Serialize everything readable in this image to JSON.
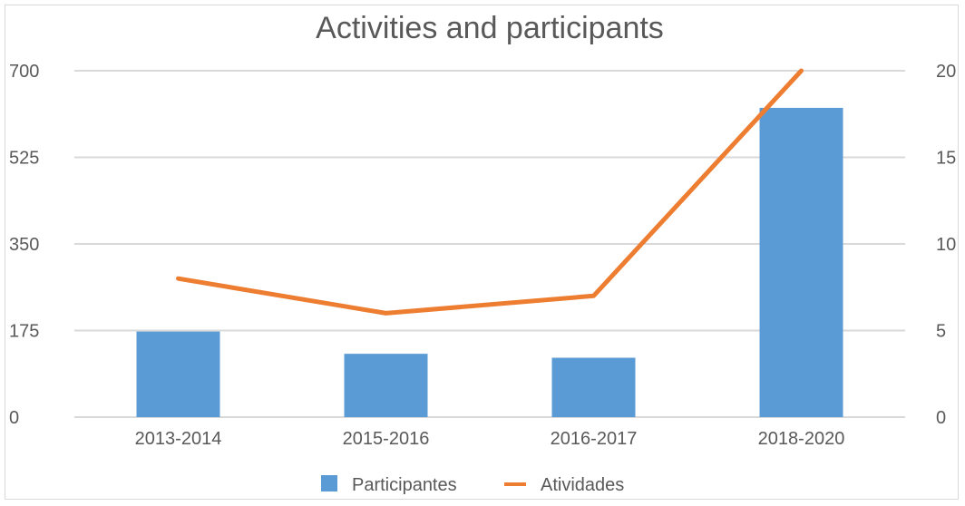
{
  "chart_data": {
    "type": "bar+line",
    "title": "Activities and participants",
    "categories": [
      "2013-2014",
      "2015-2016",
      "2016-2017",
      "2018-2020"
    ],
    "series": [
      {
        "name": "Participantes",
        "type": "bar",
        "axis": "left",
        "values": [
          173,
          128,
          120,
          625
        ],
        "color": "#5b9bd5"
      },
      {
        "name": "Atividades",
        "type": "line",
        "axis": "right",
        "values": [
          8,
          6,
          7,
          20
        ],
        "color": "#ed7d31"
      }
    ],
    "y_left": {
      "min": 0,
      "max": 700,
      "ticks": [
        "0",
        "175",
        "350",
        "525",
        "700"
      ]
    },
    "y_right": {
      "min": 0,
      "max": 20,
      "ticks": [
        "0",
        "5",
        "10",
        "15",
        "20"
      ]
    },
    "grid": true,
    "legend": "bottom"
  }
}
